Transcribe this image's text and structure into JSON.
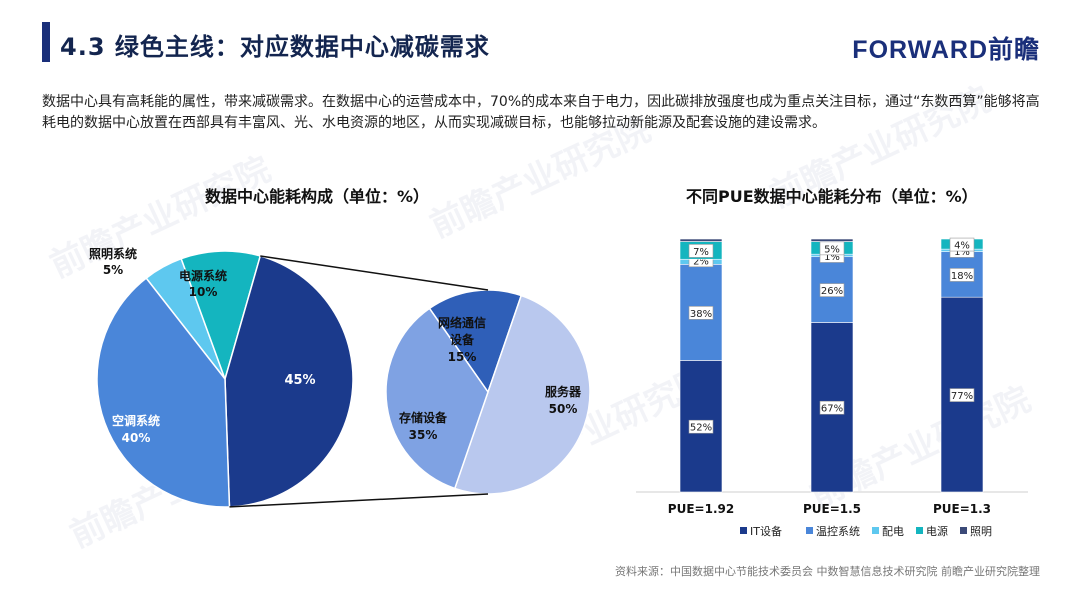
{
  "header": {
    "title": "4.3 绿色主线：对应数据中心减碳需求",
    "logo": "FORWARD前瞻"
  },
  "intro": "数据中心具有高耗能的属性，带来减碳需求。在数据中心的运营成本中，70%的成本来自于电力，因此碳排放强度也成为重点关注目标，通过“东数西算”能够将高耗电的数据中心放置在西部具有丰富风、光、水电资源的地区，从而实现减碳目标，也能够拉动新能源及配套设施的建设需求。",
  "source": "资料来源：中国数据中心节能技术委员会 中数智慧信息技术研究院 前瞻产业研究院整理",
  "colors": {
    "navy": "#1b3a8c",
    "blue": "#4a86d9",
    "lightblue": "#5ec8ef",
    "teal": "#14b5bf",
    "darkgray": "#3b4a78",
    "lightgray": "#b9c8ee"
  },
  "chart_data": [
    {
      "type": "pie",
      "title": "数据中心能耗构成（单位：%）",
      "slices": [
        {
          "label": "照明系统",
          "value": 5
        },
        {
          "label": "电源系统",
          "value": 10
        },
        {
          "label": "",
          "value": 45
        },
        {
          "label": "空调系统",
          "value": 40
        }
      ],
      "sub_pie": {
        "of": "45%",
        "slices": [
          {
            "label": "网络通信设备",
            "value": 15
          },
          {
            "label": "服务器",
            "value": 50
          },
          {
            "label": "存储设备",
            "value": 35
          }
        ]
      }
    },
    {
      "type": "bar",
      "stacked": true,
      "title": "不同PUE数据中心能耗分布（单位：%）",
      "categories": [
        "PUE=1.92",
        "PUE=1.5",
        "PUE=1.3"
      ],
      "series": [
        {
          "name": "IT设备",
          "values": [
            52,
            67,
            77
          ]
        },
        {
          "name": "温控系统",
          "values": [
            38,
            26,
            18
          ]
        },
        {
          "name": "配电",
          "values": [
            2,
            1,
            1
          ]
        },
        {
          "name": "电源",
          "values": [
            7,
            5,
            4
          ]
        },
        {
          "name": "照明",
          "values": [
            1,
            1,
            0
          ]
        }
      ],
      "ylim": [
        0,
        100
      ],
      "legend": "bottom"
    }
  ]
}
